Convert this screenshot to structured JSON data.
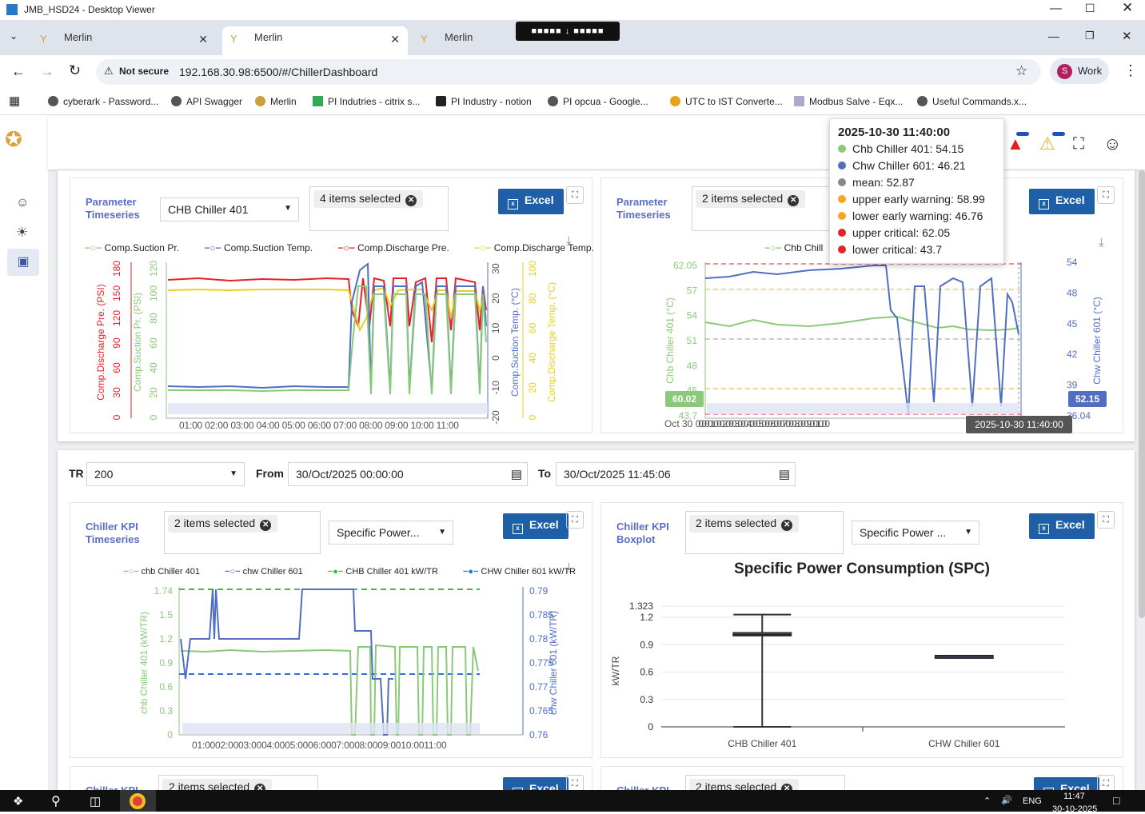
{
  "window": {
    "title": "JMB_HSD24 - Desktop Viewer"
  },
  "tabs": [
    {
      "label": "Merlin"
    },
    {
      "label": "Merlin"
    },
    {
      "label": "Merlin"
    }
  ],
  "address": {
    "security": "Not secure",
    "url": "192.168.30.98:6500/#/ChillerDashboard",
    "profile_initial": "S",
    "profile": "Work"
  },
  "bookmarks": [
    "cyberark - Password...",
    "API Swagger",
    "Merlin",
    "PI Indutries - citrix s...",
    "PI Industry - notion",
    "PI opcua - Google...",
    "UTC to IST Converte...",
    "Modbus Salve - Eqx...",
    "Useful Commands.x..."
  ],
  "panel1": {
    "title_l1": "Parameter",
    "title_l2": "Timeseries",
    "dropdown": "CHB Chiller 401",
    "chip": "4 items selected",
    "excel": "Excel",
    "legend": [
      "Comp.Suction Pr.",
      "Comp.Suction Temp.",
      "Comp.Discharge Pre.",
      "Comp.Discharge Temp."
    ],
    "axis_labels": [
      "Comp.Discharge Pre. (PSI)",
      "Comp.Suction Pr. (PSI)",
      "Comp.Suction Temp. (°C)",
      "Comp.Discharge Temp. (°C)"
    ],
    "yt_red": [
      "180",
      "150",
      "120",
      "90",
      "60",
      "30",
      "0"
    ],
    "yt_green": [
      "120",
      "100",
      "80",
      "60",
      "40",
      "20",
      "0"
    ],
    "yt_blue": [
      "30",
      "20",
      "10",
      "0",
      "-10",
      "-20"
    ],
    "yt_yellow": [
      "100",
      "80",
      "60",
      "40",
      "20",
      "0"
    ],
    "xt": "01:00 02:00 03:00 04:00 05:00 06:00 07:00 08:00 09:00 10:00 11:00"
  },
  "panel2": {
    "title_l1": "Parameter",
    "title_l2": "Timeseries",
    "chip": "2 items selected",
    "excel": "Excel",
    "legend": "Chb Chill",
    "y_left_label": "Chb Chiller 401 (°C)",
    "y_right_label": "Chw Chiller 601 (°C)",
    "yt_left": [
      "62.05",
      "57",
      "54",
      "51",
      "48",
      "45",
      "43.7"
    ],
    "yt_right": [
      "54",
      "48",
      "45",
      "42",
      "39",
      "36.04"
    ],
    "badge_left": "60.02",
    "badge_right": "52.15",
    "x_first": "Oct 30",
    "x_tip": "2025-10-30 11:40:00"
  },
  "tooltip": {
    "time": "2025-10-30 11:40:00",
    "rows": [
      {
        "label": "Chb Chiller 401: 54.15",
        "color": "#8ac97a"
      },
      {
        "label": "Chw Chiller 601: 46.21",
        "color": "#4f6ec4"
      },
      {
        "label": "mean: 52.87",
        "color": "#888888"
      },
      {
        "label": "upper early warning: 58.99",
        "color": "#f5a623"
      },
      {
        "label": "lower early warning: 46.76",
        "color": "#f5a623"
      },
      {
        "label": "upper critical: 62.05",
        "color": "#e8202a"
      },
      {
        "label": "lower critical: 43.7",
        "color": "#e8202a"
      }
    ]
  },
  "filters": {
    "tr_label": "TR",
    "tr_value": "200",
    "from_label": "From",
    "from_value": "30/Oct/2025 00:00:00",
    "to_label": "To",
    "to_value": "30/Oct/2025 11:45:06"
  },
  "panel3": {
    "title_l1": "Chiller KPI",
    "title_l2": "Timeseries",
    "chip": "2 items selected",
    "dropdown": "Specific Power...",
    "excel": "Excel",
    "legend": [
      "chb Chiller 401",
      "chw Chiller 601",
      "CHB Chiller 401 kW/TR",
      "CHW Chiller 601 kW/TR"
    ],
    "y_left_label": "chb Chiller 401 (kW/TR)",
    "y_right_label": "chw Chiller 601 (kW/TR)",
    "yt_left": [
      "1.74",
      "1.5",
      "1.2",
      "0.9",
      "0.6",
      "0.3",
      "0"
    ],
    "yt_right": [
      "0.79",
      "0.785",
      "0.78",
      "0.775",
      "0.77",
      "0.765",
      "0.76"
    ],
    "xt": "01:0002:0003:0004:0005:0006:0007:0008:0009:0010:0011:00"
  },
  "panel4": {
    "title_l1": "Chiller KPI",
    "title_l2": "Boxplot",
    "chip": "2 items selected",
    "dropdown": "Specific Power ...",
    "excel": "Excel"
  },
  "chart_data": [
    {
      "type": "box",
      "title": "Specific Power Consumption (SPC)",
      "ylabel": "kW/TR",
      "categories": [
        "CHB Chiller 401",
        "CHW Chiller 601"
      ],
      "ylim": [
        0,
        1.323
      ],
      "yticks": [
        "1.323",
        "1.2",
        "0.9",
        "0.6",
        "0.3",
        "0"
      ],
      "boxes": [
        {
          "name": "CHB Chiller 401",
          "min": 0,
          "q1": 1.0,
          "median": 1.01,
          "q3": 1.03,
          "max": 1.23
        },
        {
          "name": "CHW Chiller 601",
          "min": 0.77,
          "q1": 0.77,
          "median": 0.775,
          "q3": 0.78,
          "max": 0.78
        }
      ]
    }
  ],
  "panel5": {
    "title": "Chiller KPI",
    "chip": "2 items selected",
    "excel": "Excel"
  },
  "panel6": {
    "title": "Chiller KPI",
    "chip": "2 items selected",
    "excel": "Excel"
  },
  "taskbar": {
    "lang": "ENG",
    "time": "11:47",
    "date": "30-10-2025"
  }
}
